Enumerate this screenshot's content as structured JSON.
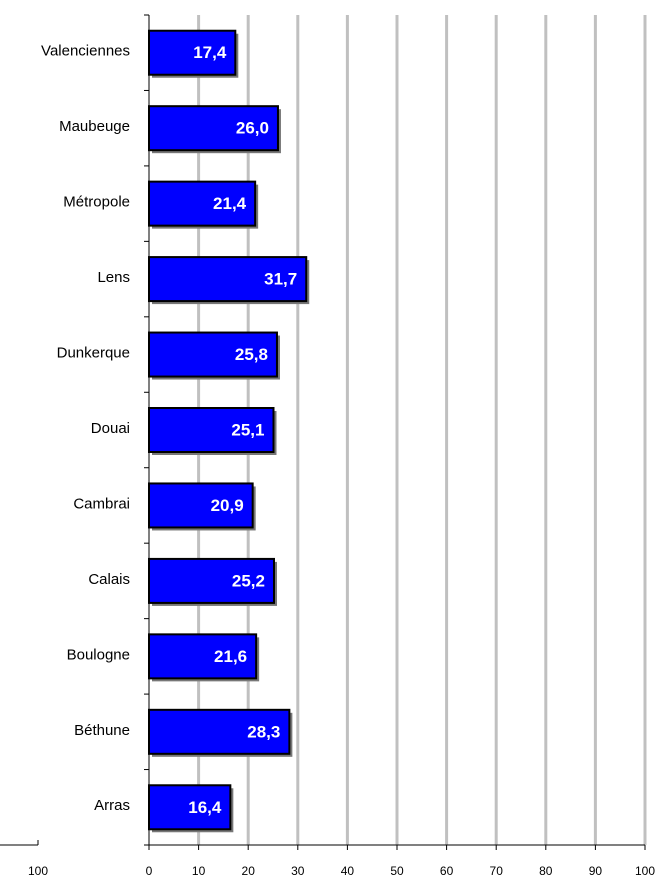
{
  "chart_data": [
    {
      "type": "barh",
      "categories": [
        "Valenciennes",
        "Maubeuge",
        "Métropole",
        "Lens",
        "Dunkerque",
        "Douai",
        "Cambrai",
        "Calais",
        "Boulogne",
        "Béthune",
        "Arras"
      ],
      "values": [
        17.4,
        26.0,
        21.4,
        31.7,
        25.8,
        25.1,
        20.9,
        25.2,
        21.6,
        28.3,
        16.4
      ],
      "value_labels": [
        "17,4",
        "26,0",
        "21,4",
        "31,7",
        "25,8",
        "25,1",
        "20,9",
        "25,2",
        "21,6",
        "28,3",
        "16,4"
      ],
      "color": "#0000ff",
      "xlim": [
        0,
        100
      ],
      "xticks": [
        0,
        10,
        20,
        30,
        40,
        50,
        60,
        70,
        80,
        90,
        100
      ],
      "grid": true
    },
    {
      "type": "axis",
      "xticks": [
        100
      ]
    }
  ]
}
